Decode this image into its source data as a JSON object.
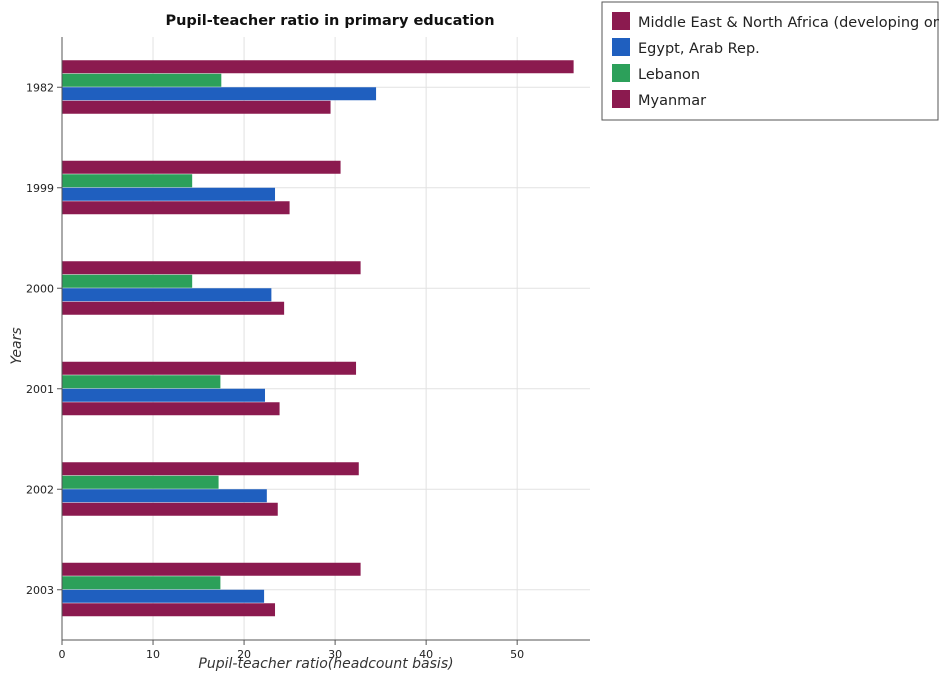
{
  "chart_data": {
    "type": "bar",
    "orientation": "horizontal",
    "title": "Pupil-teacher ratio in primary education",
    "xlabel": "Pupil-teacher ratio(headcount basis)",
    "ylabel": "Years",
    "xlim": [
      0,
      58
    ],
    "xticks": [
      0,
      10,
      20,
      30,
      40,
      50
    ],
    "grid": true,
    "legend_position": "top-right",
    "categories": [
      "1982",
      "1999",
      "2000",
      "2001",
      "2002",
      "2003"
    ],
    "series": [
      {
        "name": "Middle East & North Africa (developing only)",
        "color": "#8b1a4f",
        "values": [
          29.5,
          25.0,
          24.4,
          23.9,
          23.7,
          23.4
        ]
      },
      {
        "name": "Egypt, Arab Rep.",
        "color": "#1f5fbf",
        "values": [
          34.5,
          23.4,
          23.0,
          22.3,
          22.5,
          22.2
        ]
      },
      {
        "name": "Lebanon",
        "color": "#2ca05a",
        "values": [
          17.5,
          14.3,
          14.3,
          17.4,
          17.2,
          17.4
        ]
      },
      {
        "name": "Myanmar",
        "color": "#8b1a4f",
        "values": [
          56.2,
          30.6,
          32.8,
          32.3,
          32.6,
          32.8
        ]
      }
    ]
  }
}
